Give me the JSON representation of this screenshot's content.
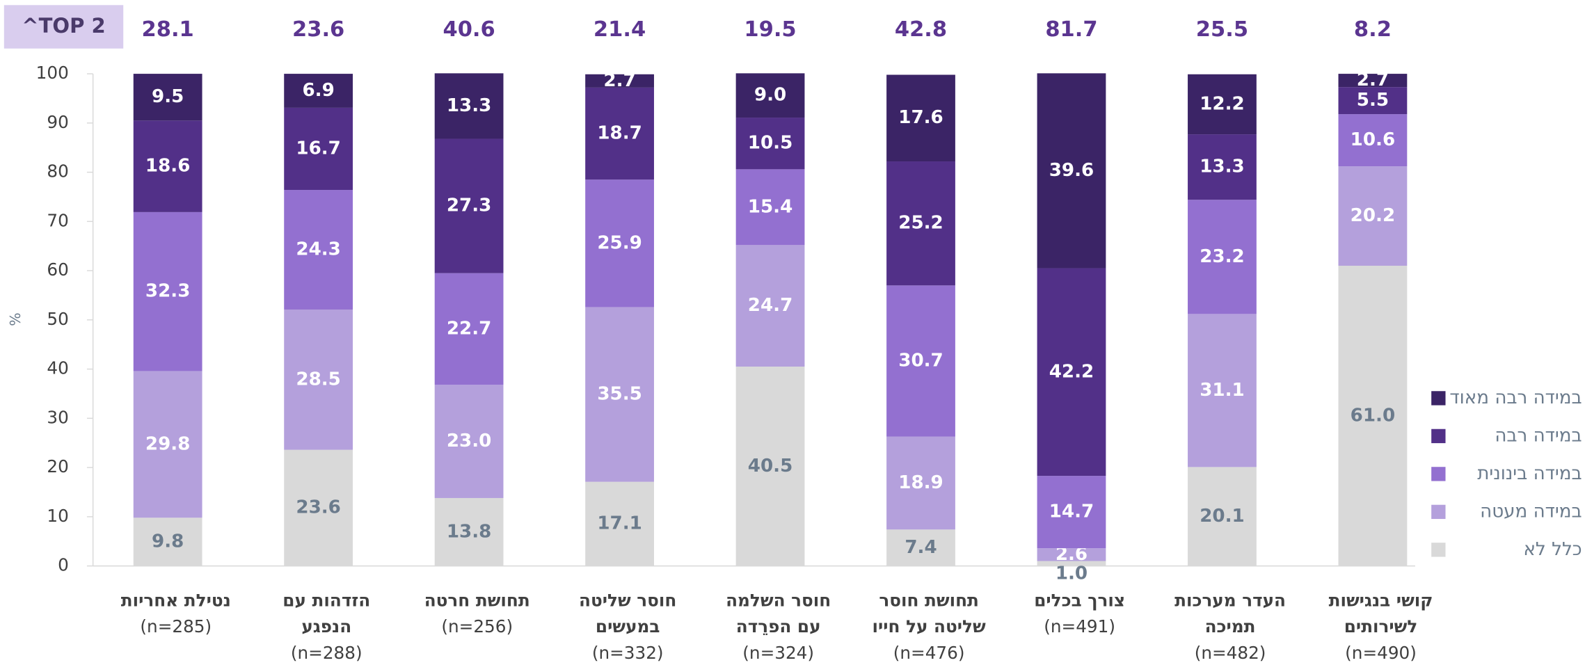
{
  "chart_data": {
    "type": "stacked-bar",
    "badge": "^TOP 2",
    "y_label": "%",
    "categories": [
      [
        "נטילת אחריות",
        "(n=285)"
      ],
      [
        "הזדהות עם",
        "הנפגע",
        "(n=288)"
      ],
      [
        "תחושת חרטה",
        "(n=256)"
      ],
      [
        "חוסר שליטה",
        "במעשים",
        "(n=332)"
      ],
      [
        "חוסר השלמה",
        "עם הפרֵדה",
        "(n=324)"
      ],
      [
        "תחושת חוסר",
        "שליטה על חייו",
        "(n=476)"
      ],
      [
        "צורך בכלים",
        "(n=491)"
      ],
      [
        "העדר מערכות",
        "תמיכה",
        "(n=482)"
      ],
      [
        "קושי בנגישות",
        "לשירותים",
        "(n=490)"
      ]
    ],
    "series": [
      {
        "name": "כלל לא",
        "color": "#d9d9d9",
        "label_color": "#6b7b8c",
        "values": [
          9.8,
          23.6,
          13.8,
          17.1,
          40.5,
          7.4,
          1.0,
          20.1,
          61.0
        ],
        "value_labels": [
          "9.8",
          "23.6",
          "13.8",
          "17.1",
          "40.5",
          "7.4",
          "1.0",
          "20.1",
          "61.0"
        ]
      },
      {
        "name": "במידה מעטה",
        "color": "#b4a0dc",
        "label_color": "#ffffff",
        "values": [
          29.8,
          28.5,
          23.0,
          35.5,
          24.7,
          18.9,
          2.6,
          31.1,
          20.2
        ],
        "value_labels": [
          "29.8",
          "28.5",
          "23.0",
          "35.5",
          "24.7",
          "18.9",
          "2.6",
          "31.1",
          "20.2"
        ]
      },
      {
        "name": "במידה בינונית",
        "color": "#9370d0",
        "label_color": "#ffffff",
        "values": [
          32.3,
          24.3,
          22.7,
          25.9,
          15.4,
          30.7,
          14.7,
          23.2,
          10.6
        ],
        "value_labels": [
          "32.3",
          "24.3",
          "22.7",
          "25.9",
          "15.4",
          "30.7",
          "14.7",
          "23.2",
          "10.6"
        ]
      },
      {
        "name": "במידה רבה",
        "color": "#523088",
        "label_color": "#ffffff",
        "values": [
          18.6,
          16.7,
          27.3,
          18.7,
          10.5,
          25.2,
          42.2,
          13.3,
          5.5
        ],
        "value_labels": [
          "18.6",
          "16.7",
          "27.3",
          "18.7",
          "10.5",
          "25.2",
          "42.2",
          "13.3",
          "5.5"
        ]
      },
      {
        "name": "במידה רבה מאוד",
        "color": "#3b2466",
        "label_color": "#ffffff",
        "values": [
          9.5,
          6.9,
          13.3,
          2.7,
          9.0,
          17.6,
          39.6,
          12.2,
          2.7
        ],
        "value_labels": [
          "9.5",
          "6.9",
          "13.3",
          "2.7",
          "9.0",
          "17.6",
          "39.6",
          "12.2",
          "2.7"
        ]
      }
    ],
    "top2": {
      "color": "#5b3590",
      "values": [
        28.1,
        23.6,
        40.6,
        21.4,
        19.5,
        42.8,
        81.7,
        25.5,
        8.2
      ],
      "value_labels": [
        "28.1",
        "23.6",
        "40.6",
        "21.4",
        "19.5",
        "42.8",
        "81.7",
        "25.5",
        "8.2"
      ]
    },
    "ylim": [
      0,
      100
    ],
    "yticks": [
      0,
      10,
      20,
      30,
      40,
      50,
      60,
      70,
      80,
      90,
      100
    ]
  }
}
